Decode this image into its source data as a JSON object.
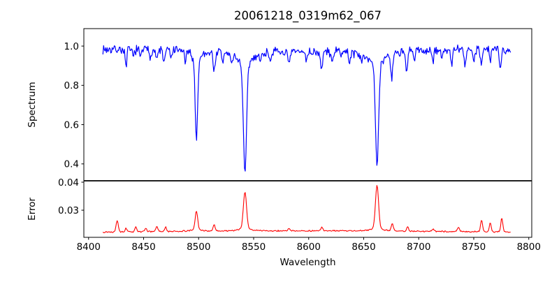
{
  "chart_data": {
    "type": "line",
    "title": "20061218_0319m62_067",
    "xlabel": "Wavelength",
    "xlim": [
      8395.7,
      8802.7
    ],
    "x_data_range": [
      8413,
      8784
    ],
    "x_step": 0.65,
    "grid": false,
    "legend": "none",
    "xticks": [
      {
        "v": 8400,
        "label": "8400"
      },
      {
        "v": 8450,
        "label": "8450"
      },
      {
        "v": 8500,
        "label": "8500"
      },
      {
        "v": 8550,
        "label": "8550"
      },
      {
        "v": 8600,
        "label": "8600"
      },
      {
        "v": 8650,
        "label": "8650"
      },
      {
        "v": 8700,
        "label": "8700"
      },
      {
        "v": 8750,
        "label": "8750"
      },
      {
        "v": 8800,
        "label": "8800"
      }
    ],
    "panels": [
      {
        "name": "spectrum",
        "ylabel": "Spectrum",
        "line_color": "#0000ff",
        "ylim": [
          0.314,
          1.089
        ],
        "yticks": [
          {
            "v": 1.0,
            "label": "1.0"
          },
          {
            "v": 0.8,
            "label": "0.8"
          },
          {
            "v": 0.6,
            "label": "0.6"
          },
          {
            "v": 0.4,
            "label": "0.4"
          }
        ],
        "continuum": {
          "base": 0.978,
          "wave_amp": 0.006
        },
        "noise_amp": 0.028,
        "absorption_lines": [
          {
            "center": 8434.0,
            "depth": 0.095,
            "sigma": 0.8
          },
          {
            "center": 8440.5,
            "depth": 0.045,
            "sigma": 0.7
          },
          {
            "center": 8447.0,
            "depth": 0.05,
            "sigma": 0.7
          },
          {
            "center": 8456.0,
            "depth": 0.04,
            "sigma": 0.7
          },
          {
            "center": 8462.0,
            "depth": 0.055,
            "sigma": 0.8
          },
          {
            "center": 8468.5,
            "depth": 0.07,
            "sigma": 0.8
          },
          {
            "center": 8475.0,
            "depth": 0.045,
            "sigma": 0.7
          },
          {
            "center": 8488.0,
            "depth": 0.05,
            "sigma": 0.7
          },
          {
            "center": 8498.0,
            "depth": 0.4,
            "sigma": 1.1,
            "wing_depth": 0.06,
            "wing_width": 4.0,
            "min_flux": 0.53
          },
          {
            "center": 8514.1,
            "depth": 0.1,
            "sigma": 0.9
          },
          {
            "center": 8522.0,
            "depth": 0.05,
            "sigma": 0.8
          },
          {
            "center": 8530.0,
            "depth": 0.045,
            "sigma": 1.0
          },
          {
            "center": 8542.1,
            "depth": 0.55,
            "sigma": 1.4,
            "wing_depth": 0.09,
            "wing_width": 6.0,
            "min_flux": 0.35
          },
          {
            "center": 8556.0,
            "depth": 0.04,
            "sigma": 0.8
          },
          {
            "center": 8565.0,
            "depth": 0.035,
            "sigma": 0.7
          },
          {
            "center": 8582.0,
            "depth": 0.075,
            "sigma": 0.9
          },
          {
            "center": 8598.0,
            "depth": 0.04,
            "sigma": 0.8
          },
          {
            "center": 8611.5,
            "depth": 0.1,
            "sigma": 0.9
          },
          {
            "center": 8621.0,
            "depth": 0.055,
            "sigma": 0.8
          },
          {
            "center": 8637.0,
            "depth": 0.05,
            "sigma": 0.8
          },
          {
            "center": 8648.0,
            "depth": 0.055,
            "sigma": 0.8
          },
          {
            "center": 8662.1,
            "depth": 0.51,
            "sigma": 1.4,
            "wing_depth": 0.09,
            "wing_width": 6.0,
            "min_flux": 0.39
          },
          {
            "center": 8675.5,
            "depth": 0.13,
            "sigma": 0.9
          },
          {
            "center": 8689.0,
            "depth": 0.12,
            "sigma": 0.9
          },
          {
            "center": 8696.0,
            "depth": 0.05,
            "sigma": 0.7
          },
          {
            "center": 8713.0,
            "depth": 0.07,
            "sigma": 0.8
          },
          {
            "center": 8721.0,
            "depth": 0.05,
            "sigma": 0.7
          },
          {
            "center": 8730.0,
            "depth": 0.08,
            "sigma": 0.8
          },
          {
            "center": 8742.0,
            "depth": 0.09,
            "sigma": 0.8
          },
          {
            "center": 8750.0,
            "depth": 0.06,
            "sigma": 0.7
          },
          {
            "center": 8757.0,
            "depth": 0.07,
            "sigma": 0.8
          },
          {
            "center": 8765.0,
            "depth": 0.06,
            "sigma": 0.7
          },
          {
            "center": 8774.0,
            "depth": 0.1,
            "sigma": 0.9
          }
        ]
      },
      {
        "name": "error",
        "ylabel": "Error",
        "line_color": "#ff0000",
        "ylim": [
          0.0203,
          0.0405
        ],
        "yticks": [
          {
            "v": 0.04,
            "label": "0.04"
          },
          {
            "v": 0.03,
            "label": "0.03"
          }
        ],
        "baseline": {
          "base": 0.0222,
          "wave_amp": 0.0004
        },
        "noise_amp": 0.0005,
        "peaks": [
          {
            "center": 8426.0,
            "height": 0.0042,
            "sigma": 1.0
          },
          {
            "center": 8434.0,
            "height": 0.0012,
            "sigma": 0.8
          },
          {
            "center": 8443.0,
            "height": 0.0018,
            "sigma": 0.8
          },
          {
            "center": 8452.0,
            "height": 0.0014,
            "sigma": 0.8
          },
          {
            "center": 8462.0,
            "height": 0.0018,
            "sigma": 0.9
          },
          {
            "center": 8470.0,
            "height": 0.0015,
            "sigma": 0.8
          },
          {
            "center": 8498.0,
            "height": 0.0065,
            "sigma": 1.1,
            "wing_height": 0.0008,
            "wing_width": 4.0,
            "peak_value": 0.03
          },
          {
            "center": 8514.0,
            "height": 0.0022,
            "sigma": 0.9
          },
          {
            "center": 8542.1,
            "height": 0.0128,
            "sigma": 1.4,
            "wing_height": 0.0012,
            "wing_width": 5.0,
            "peak_value": 0.038
          },
          {
            "center": 8582.0,
            "height": 0.0008,
            "sigma": 0.9
          },
          {
            "center": 8612.0,
            "height": 0.0013,
            "sigma": 0.9
          },
          {
            "center": 8662.1,
            "height": 0.0152,
            "sigma": 1.4,
            "wing_height": 0.0012,
            "wing_width": 5.0,
            "peak_value": 0.039
          },
          {
            "center": 8676.0,
            "height": 0.0026,
            "sigma": 0.9
          },
          {
            "center": 8690.0,
            "height": 0.0015,
            "sigma": 0.8
          },
          {
            "center": 8713.0,
            "height": 0.0008,
            "sigma": 0.8
          },
          {
            "center": 8736.0,
            "height": 0.0016,
            "sigma": 0.9
          },
          {
            "center": 8757.0,
            "height": 0.0042,
            "sigma": 0.9
          },
          {
            "center": 8765.0,
            "height": 0.0034,
            "sigma": 0.8
          },
          {
            "center": 8775.5,
            "height": 0.005,
            "sigma": 0.9
          }
        ]
      }
    ]
  }
}
